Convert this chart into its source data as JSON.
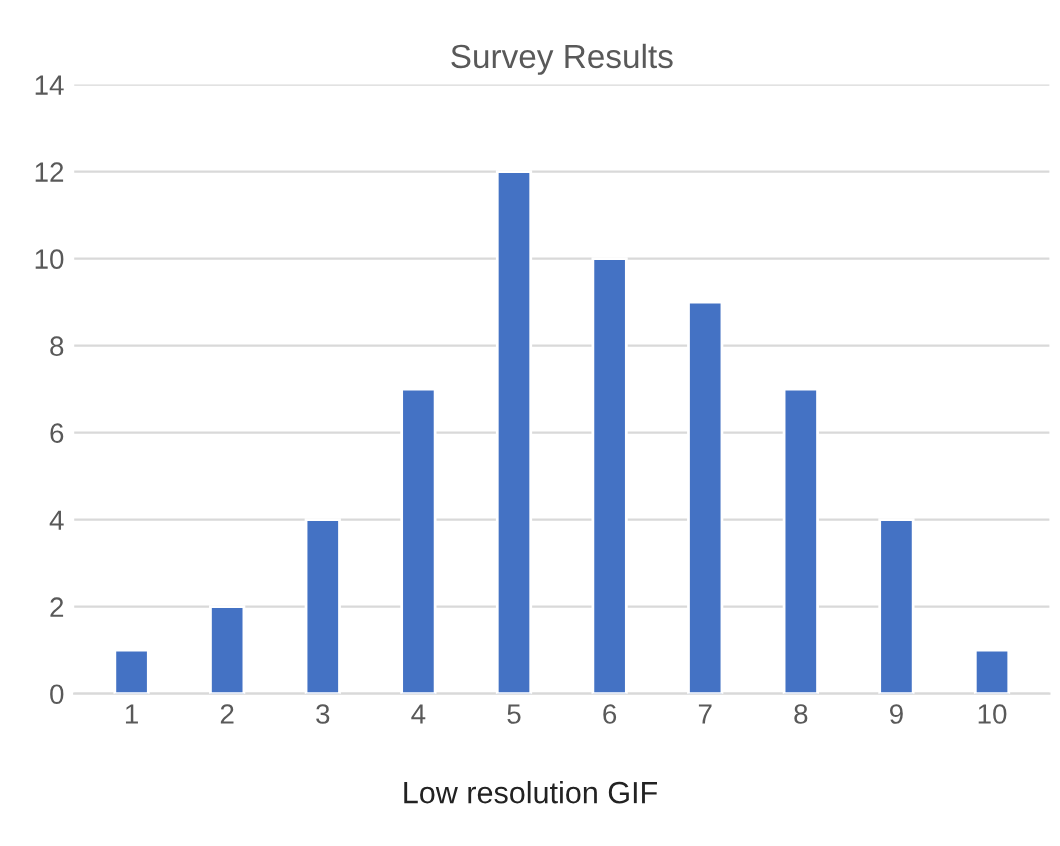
{
  "chart_data": {
    "type": "bar",
    "title": "Survey Results",
    "categories": [
      "1",
      "2",
      "3",
      "4",
      "5",
      "6",
      "7",
      "8",
      "9",
      "10"
    ],
    "values": [
      1,
      2,
      4,
      7,
      12,
      10,
      9,
      7,
      4,
      1
    ],
    "color": "#4472c4",
    "ylim": [
      0,
      14
    ],
    "yticks": [
      0,
      2,
      4,
      6,
      8,
      10,
      12,
      14
    ],
    "grid": "y",
    "annotations": [
      "Low resolution GIF"
    ]
  }
}
